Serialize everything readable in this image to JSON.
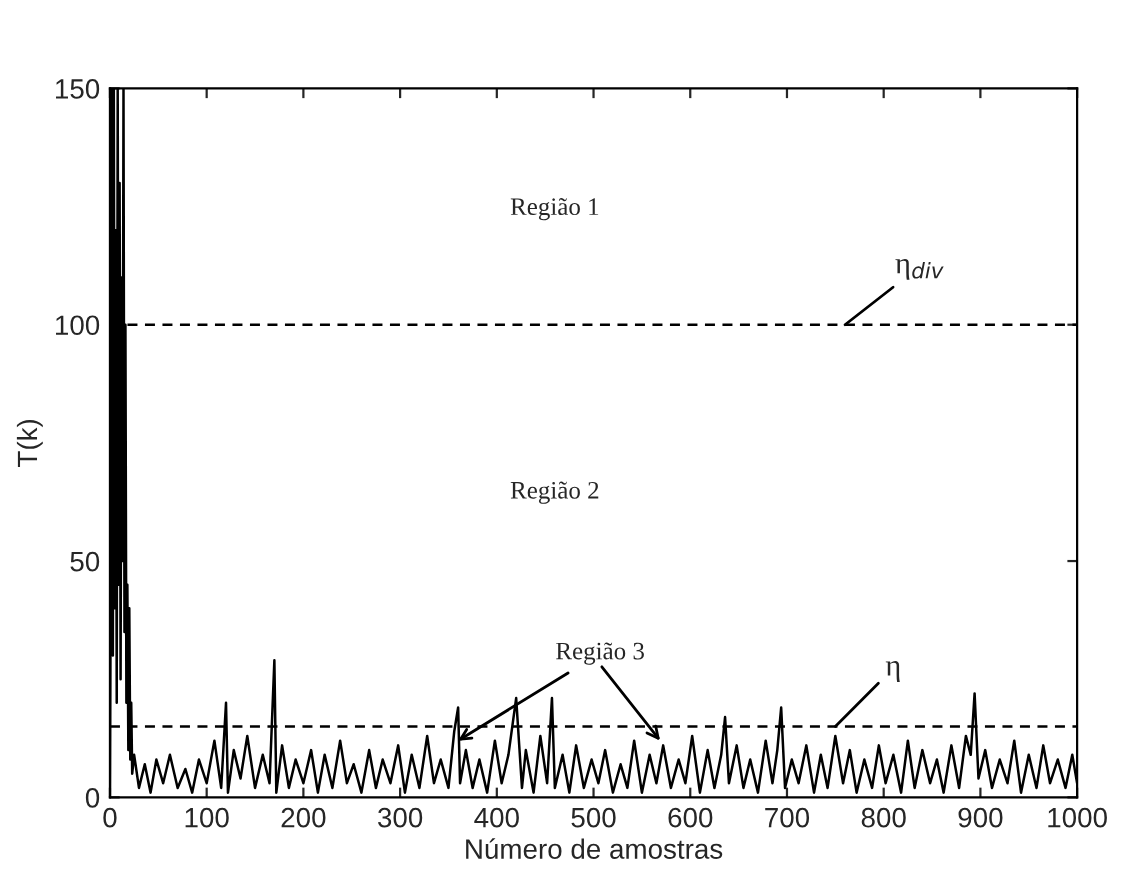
{
  "chart_data": {
    "type": "line",
    "xlabel": "Número de amostras",
    "ylabel": "T(k)",
    "x": [
      0,
      1,
      2,
      3,
      4,
      5,
      6,
      7,
      8,
      9,
      10,
      11,
      12,
      13,
      14,
      15,
      16,
      17,
      18,
      19,
      20,
      21,
      22,
      23,
      25,
      30,
      36,
      42,
      48,
      55,
      62,
      70,
      78,
      85,
      92,
      100,
      108,
      115,
      120,
      122,
      128,
      135,
      142,
      150,
      158,
      165,
      170,
      172,
      178,
      185,
      192,
      200,
      208,
      215,
      222,
      230,
      238,
      245,
      252,
      260,
      268,
      275,
      282,
      290,
      298,
      305,
      312,
      320,
      328,
      335,
      342,
      350,
      356,
      360,
      362,
      368,
      375,
      382,
      390,
      398,
      405,
      412,
      420,
      426,
      430,
      438,
      445,
      452,
      457,
      460,
      468,
      475,
      482,
      490,
      498,
      505,
      512,
      520,
      528,
      535,
      542,
      550,
      558,
      565,
      572,
      580,
      588,
      595,
      602,
      610,
      618,
      625,
      632,
      636,
      640,
      648,
      655,
      662,
      670,
      678,
      685,
      690,
      694,
      698,
      705,
      712,
      720,
      728,
      735,
      742,
      750,
      758,
      765,
      772,
      780,
      788,
      795,
      802,
      810,
      818,
      825,
      832,
      840,
      848,
      855,
      862,
      870,
      878,
      885,
      890,
      894,
      898,
      905,
      912,
      920,
      928,
      935,
      942,
      950,
      958,
      965,
      972,
      980,
      988,
      995,
      1000
    ],
    "values": [
      0,
      60,
      150,
      30,
      150,
      40,
      120,
      20,
      150,
      45,
      130,
      25,
      110,
      50,
      150,
      35,
      100,
      20,
      45,
      10,
      40,
      8,
      20,
      5,
      9,
      2,
      7,
      1,
      8,
      3,
      9,
      2,
      6,
      1,
      8,
      3,
      12,
      2,
      20,
      1,
      10,
      4,
      13,
      2,
      9,
      3,
      29,
      1,
      11,
      2,
      8,
      3,
      10,
      1,
      9,
      2,
      12,
      3,
      7,
      1,
      10,
      2,
      8,
      3,
      11,
      1,
      9,
      2,
      13,
      3,
      8,
      2,
      14,
      19,
      3,
      10,
      2,
      8,
      1,
      12,
      3,
      9,
      21,
      2,
      10,
      1,
      13,
      3,
      21,
      2,
      9,
      1,
      11,
      2,
      8,
      3,
      10,
      1,
      7,
      2,
      12,
      1,
      9,
      3,
      11,
      2,
      8,
      3,
      13,
      1,
      10,
      2,
      9,
      17,
      3,
      11,
      2,
      8,
      1,
      12,
      3,
      10,
      19,
      2,
      8,
      3,
      11,
      1,
      9,
      2,
      13,
      3,
      10,
      1,
      8,
      2,
      11,
      3,
      9,
      1,
      12,
      2,
      10,
      3,
      8,
      1,
      11,
      2,
      13,
      9,
      22,
      4,
      10,
      2,
      8,
      3,
      12,
      1,
      9,
      2,
      11,
      3,
      8,
      2,
      9,
      3
    ],
    "color": "#000000",
    "marker": "none",
    "line_style": "solid",
    "xlim": [
      0,
      1000
    ],
    "xticks": [
      0,
      100,
      200,
      300,
      400,
      500,
      600,
      700,
      800,
      900,
      1000
    ],
    "ylim": [
      0,
      150
    ],
    "yticks": [
      0,
      50,
      100,
      150
    ],
    "grid": false,
    "legend": false,
    "ref_lines": [
      {
        "axis": "y",
        "value": 100,
        "color": "#000000",
        "line_style": "dashed"
      },
      {
        "axis": "y",
        "value": 15,
        "color": "#000000",
        "line_style": "dashed"
      }
    ],
    "annotations": [
      "Região 1",
      "Região 2",
      {
        "text": "η$_{div}$",
        "x": 760,
        "y": 100
      },
      {
        "text": "η",
        "x": 750,
        "y": 15
      },
      {
        "text": "Região 3",
        "x": 360,
        "y": 12
      }
    ]
  }
}
